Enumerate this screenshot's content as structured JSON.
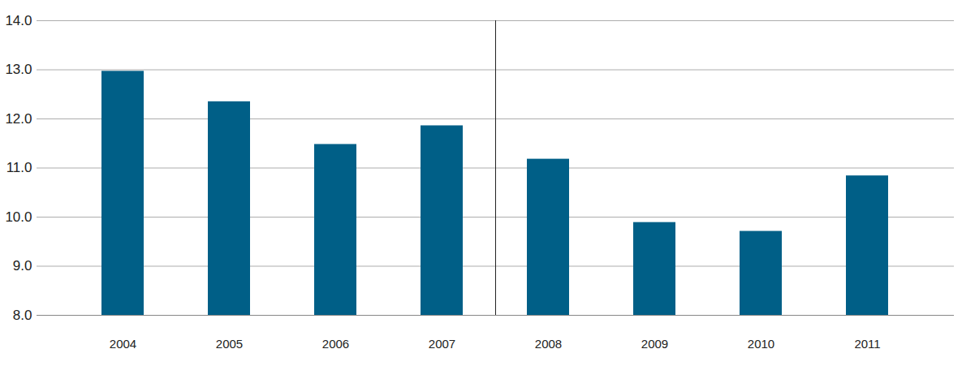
{
  "chart_data": {
    "type": "bar",
    "categories": [
      "2004",
      "2005",
      "2006",
      "2007",
      "2008",
      "2009",
      "2010",
      "2011"
    ],
    "values": [
      12.97,
      12.35,
      11.48,
      11.86,
      11.18,
      9.89,
      9.71,
      10.84
    ],
    "color": "#005f87",
    "ylim": [
      8,
      14
    ],
    "yticks": [
      8,
      9,
      10,
      11,
      12,
      13,
      14
    ],
    "grid": true
  }
}
